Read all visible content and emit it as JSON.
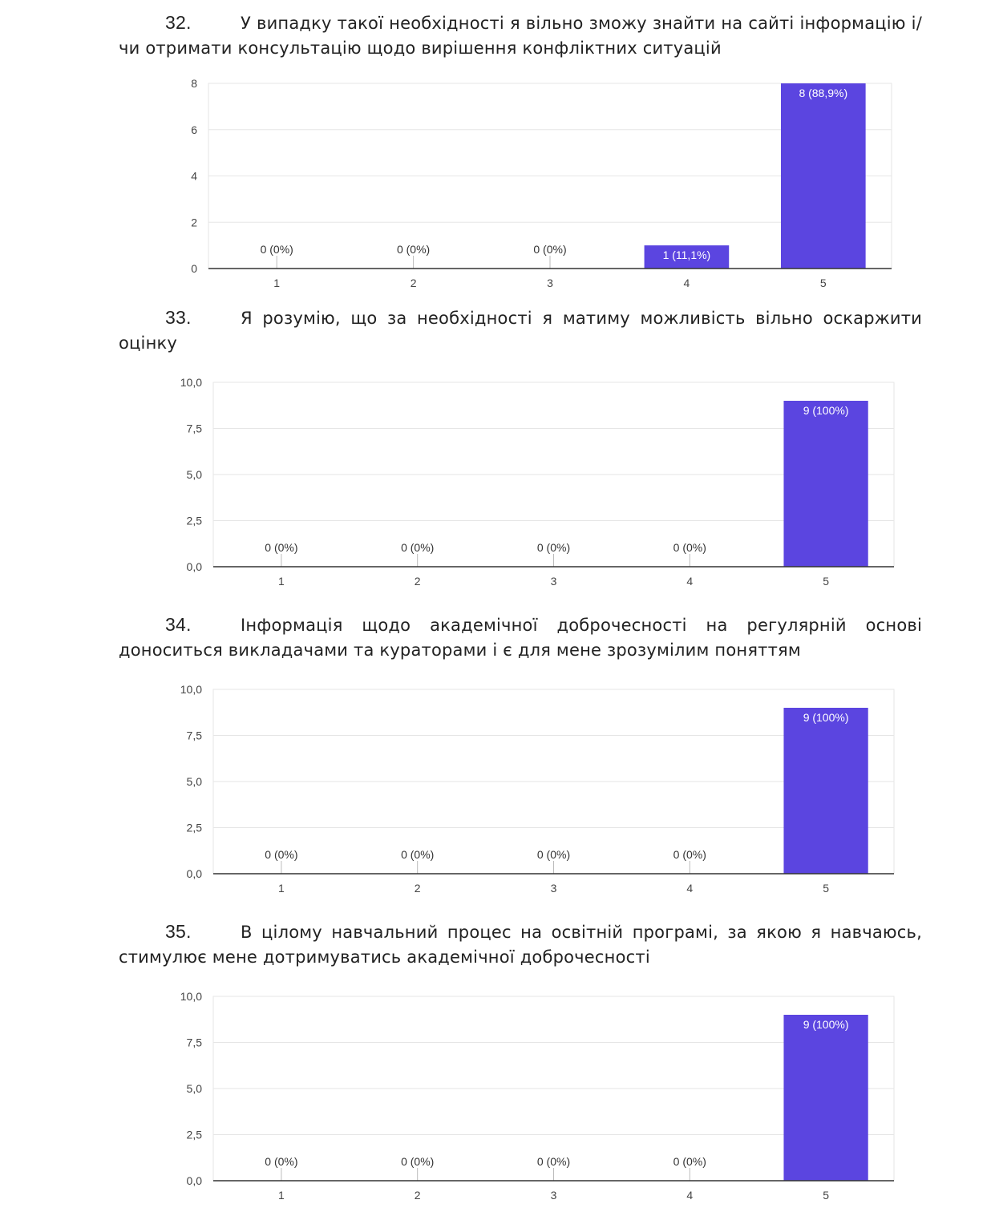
{
  "colors": {
    "bar": "#5b45e0",
    "grid": "#e6e6e6",
    "axis": "#333333"
  },
  "questions": [
    {
      "number": "32.",
      "text": "У випадку такої необхідності я вільно зможу знайти на сайті інформацію і/чи отримати консультацію щодо вирішення конфліктних ситуацій"
    },
    {
      "number": "33.",
      "text": "Я розумію, що за необхідності я матиму можливість вільно оскаржити оцінку"
    },
    {
      "number": "34.",
      "text": "Інформація щодо академічної доброчесності на регулярній основі доноситься викладачами та кураторами і є для мене зрозумілим поняттям"
    },
    {
      "number": "35.",
      "text": "В цілому навчальний процес на освітній програмі, за якою я навчаюсь, стимулює мене дотримуватись академічної доброчесності"
    }
  ],
  "chart_data": [
    {
      "type": "bar",
      "categories": [
        "1",
        "2",
        "3",
        "4",
        "5"
      ],
      "values": [
        0,
        0,
        0,
        1,
        8
      ],
      "labels": [
        "0 (0%)",
        "0 (0%)",
        "0 (0%)",
        "1 (11,1%)",
        "8 (88,9%)"
      ],
      "ylim": [
        0,
        8
      ],
      "yticks": [
        "0",
        "2",
        "4",
        "6",
        "8"
      ],
      "grid": true
    },
    {
      "type": "bar",
      "categories": [
        "1",
        "2",
        "3",
        "4",
        "5"
      ],
      "values": [
        0,
        0,
        0,
        0,
        9
      ],
      "labels": [
        "0 (0%)",
        "0 (0%)",
        "0 (0%)",
        "0 (0%)",
        "9 (100%)"
      ],
      "ylim": [
        0,
        10
      ],
      "yticks": [
        "0,0",
        "2,5",
        "5,0",
        "7,5",
        "10,0"
      ],
      "grid": true
    },
    {
      "type": "bar",
      "categories": [
        "1",
        "2",
        "3",
        "4",
        "5"
      ],
      "values": [
        0,
        0,
        0,
        0,
        9
      ],
      "labels": [
        "0 (0%)",
        "0 (0%)",
        "0 (0%)",
        "0 (0%)",
        "9 (100%)"
      ],
      "ylim": [
        0,
        10
      ],
      "yticks": [
        "0,0",
        "2,5",
        "5,0",
        "7,5",
        "10,0"
      ],
      "grid": true
    },
    {
      "type": "bar",
      "categories": [
        "1",
        "2",
        "3",
        "4",
        "5"
      ],
      "values": [
        0,
        0,
        0,
        0,
        9
      ],
      "labels": [
        "0 (0%)",
        "0 (0%)",
        "0 (0%)",
        "0 (0%)",
        "9 (100%)"
      ],
      "ylim": [
        0,
        10
      ],
      "yticks": [
        "0,0",
        "2,5",
        "5,0",
        "7,5",
        "10,0"
      ],
      "grid": true
    }
  ]
}
